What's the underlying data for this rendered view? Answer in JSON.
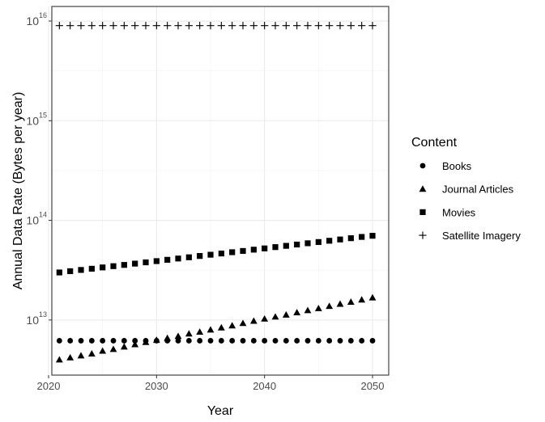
{
  "chart_data": {
    "type": "scatter",
    "xlabel": "Year",
    "ylabel": "Annual Data Rate (Bytes per year)",
    "xlim": [
      2020.3,
      2051.5
    ],
    "ylim": [
      2800000000000.0,
      1.4e+16
    ],
    "y_scale": "log10",
    "x_ticks": [
      2020,
      2030,
      2040,
      2050
    ],
    "x_tick_labels": [
      "2020",
      "2030",
      "2040",
      "2050"
    ],
    "y_ticks": [
      10000000000000.0,
      100000000000000.0,
      1000000000000000.0,
      1e+16
    ],
    "y_tick_labels": [
      {
        "base": "10",
        "exp": "13"
      },
      {
        "base": "10",
        "exp": "14"
      },
      {
        "base": "10",
        "exp": "15"
      },
      {
        "base": "10",
        "exp": "16"
      }
    ],
    "grid": true,
    "legend_position": "right",
    "legend_title": "Content",
    "x": [
      2021,
      2022,
      2023,
      2024,
      2025,
      2026,
      2027,
      2028,
      2029,
      2030,
      2031,
      2032,
      2033,
      2034,
      2035,
      2036,
      2037,
      2038,
      2039,
      2040,
      2041,
      2042,
      2043,
      2044,
      2045,
      2046,
      2047,
      2048,
      2049,
      2050
    ],
    "series": [
      {
        "name": "Books",
        "marker": "circle",
        "values": [
          6200000000000.0,
          6200000000000.0,
          6200000000000.0,
          6200000000000.0,
          6200000000000.0,
          6200000000000.0,
          6200000000000.0,
          6200000000000.0,
          6200000000000.0,
          6200000000000.0,
          6200000000000.0,
          6200000000000.0,
          6200000000000.0,
          6200000000000.0,
          6200000000000.0,
          6200000000000.0,
          6200000000000.0,
          6200000000000.0,
          6200000000000.0,
          6200000000000.0,
          6200000000000.0,
          6200000000000.0,
          6200000000000.0,
          6200000000000.0,
          6200000000000.0,
          6200000000000.0,
          6200000000000.0,
          6200000000000.0,
          6200000000000.0,
          6200000000000.0
        ]
      },
      {
        "name": "Journal Articles",
        "marker": "triangle",
        "values": [
          4000000000000.0,
          4200000000000.0,
          4400000000000.0,
          4600000000000.0,
          4900000000000.0,
          5100000000000.0,
          5400000000000.0,
          5700000000000.0,
          6000000000000.0,
          6300000000000.0,
          6600000000000.0,
          6900000000000.0,
          7300000000000.0,
          7600000000000.0,
          8000000000000.0,
          8400000000000.0,
          8800000000000.0,
          9300000000000.0,
          9800000000000.0,
          10300000000000.0,
          10800000000000.0,
          11300000000000.0,
          11900000000000.0,
          12500000000000.0,
          13100000000000.0,
          13800000000000.0,
          14500000000000.0,
          15200000000000.0,
          16000000000000.0,
          16800000000000.0
        ]
      },
      {
        "name": "Movies",
        "marker": "square",
        "values": [
          30000000000000.0,
          30900000000000.0,
          31800000000000.0,
          32700000000000.0,
          33700000000000.0,
          34700000000000.0,
          35700000000000.0,
          36800000000000.0,
          37900000000000.0,
          39000000000000.0,
          40200000000000.0,
          41400000000000.0,
          42600000000000.0,
          43900000000000.0,
          45200000000000.0,
          46500000000000.0,
          47900000000000.0,
          49300000000000.0,
          50800000000000.0,
          52300000000000.0,
          53900000000000.0,
          55500000000000.0,
          57200000000000.0,
          58900000000000.0,
          60600000000000.0,
          62400000000000.0,
          64300000000000.0,
          66200000000000.0,
          68200000000000.0,
          70000000000000.0
        ]
      },
      {
        "name": "Satellite Imagery",
        "marker": "plus",
        "values": [
          9000000000000000.0,
          9000000000000000.0,
          9000000000000000.0,
          9000000000000000.0,
          9000000000000000.0,
          9000000000000000.0,
          9000000000000000.0,
          9000000000000000.0,
          9000000000000000.0,
          9000000000000000.0,
          9000000000000000.0,
          9000000000000000.0,
          9000000000000000.0,
          9000000000000000.0,
          9000000000000000.0,
          9000000000000000.0,
          9000000000000000.0,
          9000000000000000.0,
          9000000000000000.0,
          9000000000000000.0,
          9000000000000000.0,
          9000000000000000.0,
          9000000000000000.0,
          9000000000000000.0,
          9000000000000000.0,
          9000000000000000.0,
          9000000000000000.0,
          9000000000000000.0,
          9000000000000000.0,
          9000000000000000.0
        ]
      }
    ]
  }
}
